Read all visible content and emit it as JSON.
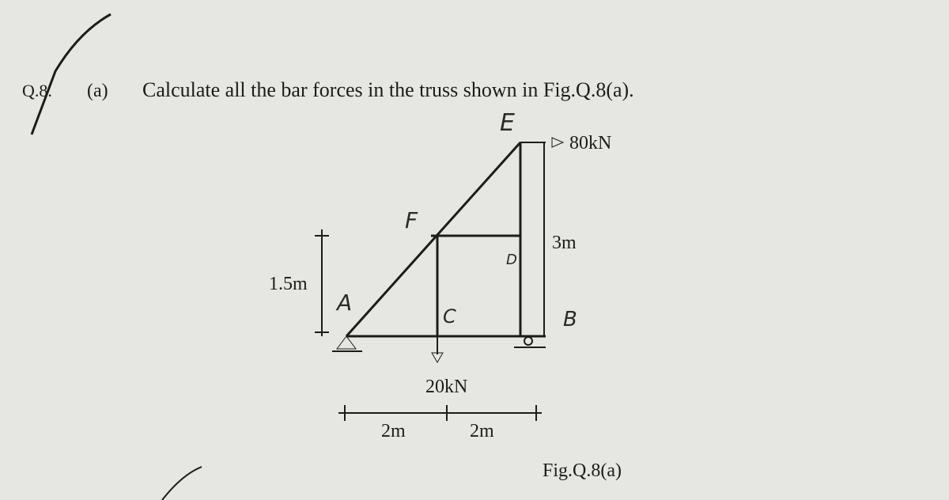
{
  "question": {
    "number": "Q.8.",
    "part": "(a)",
    "text": "Calculate all the bar forces in the truss shown in Fig.Q.8(a)."
  },
  "figure": {
    "caption": "Fig.Q.8(a)",
    "loads": [
      "80kN",
      "20kN"
    ],
    "dimensions": [
      "3m",
      "1.5m",
      "2m",
      "2m"
    ],
    "nodes": [
      "E",
      "F",
      "D",
      "A",
      "C",
      "B"
    ]
  }
}
